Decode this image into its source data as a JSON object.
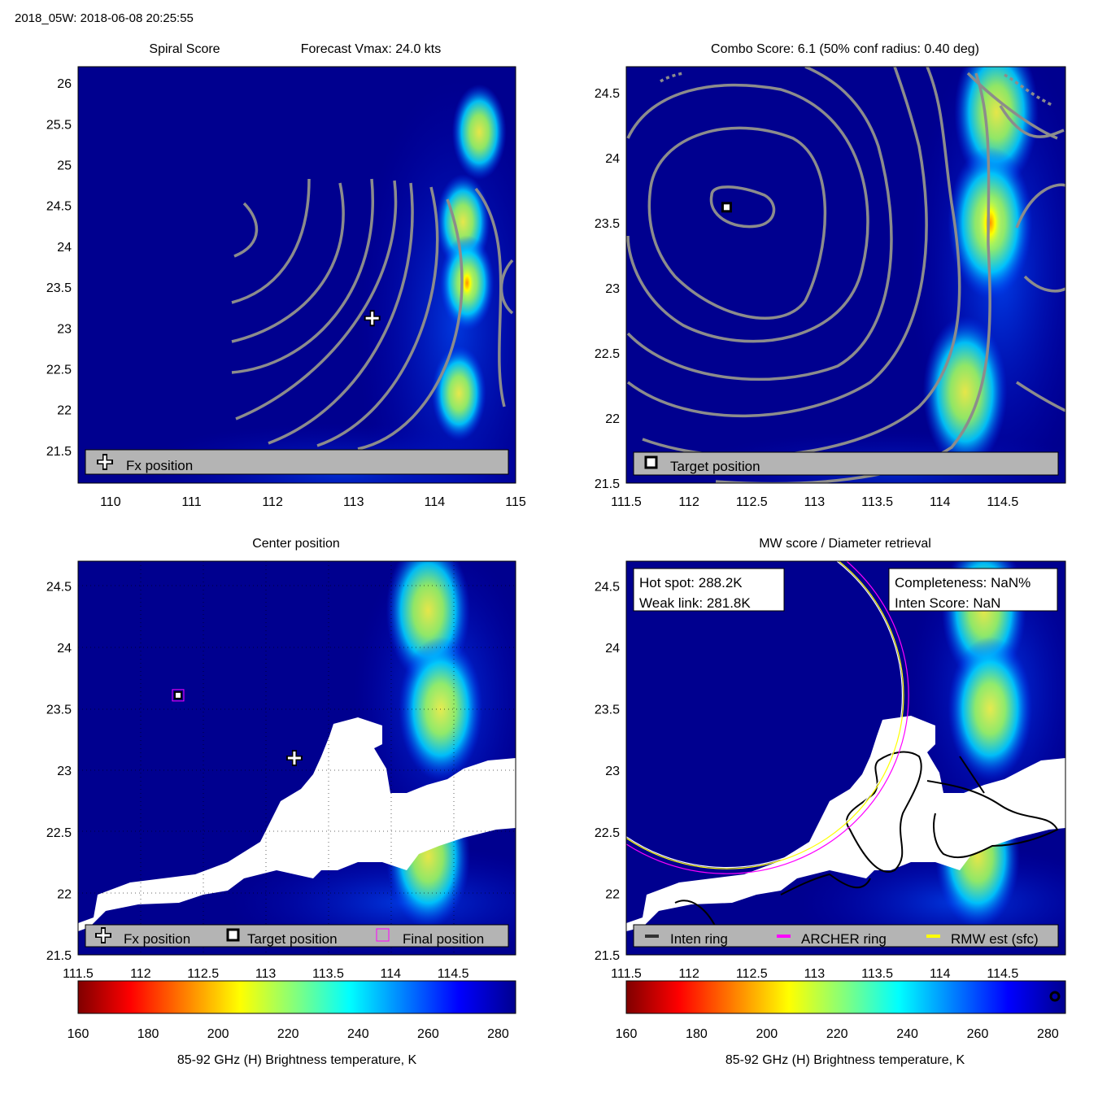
{
  "header": {
    "title": "2018_05W: 2018-06-08 20:25:55"
  },
  "colors": {
    "background": "#00008f",
    "contour": "#8c8c8c",
    "legend_box": "#b4b4b4",
    "cloud_mask": "#ffffff",
    "inten_ring": "#000000",
    "archer_ring": "#ff00ff",
    "rmw_ring": "#ffff00"
  },
  "panels": [
    {
      "id": "spiral",
      "title_left": "Spiral Score",
      "title_right": "Forecast Vmax: 24.0 kts",
      "legend": [
        {
          "icon": "plus-icon",
          "label": "Fx position"
        }
      ]
    },
    {
      "id": "combo",
      "title": "Combo Score: 6.1  (50% conf radius: 0.40 deg)",
      "legend": [
        {
          "icon": "square-marker-icon",
          "label": "Target position"
        }
      ]
    },
    {
      "id": "center",
      "title": "Center position",
      "legend": [
        {
          "icon": "plus-icon",
          "label": "Fx position"
        },
        {
          "icon": "square-marker-icon",
          "label": "Target position"
        },
        {
          "icon": "magenta-square-icon",
          "label": "Final position"
        }
      ]
    },
    {
      "id": "mw",
      "title": "MW score / Diameter retrieval",
      "info_left": [
        "Hot spot: 288.2K",
        "Weak link: 281.8K"
      ],
      "info_right": [
        "Completeness: NaN%",
        "Inten Score: NaN"
      ],
      "legend": [
        {
          "icon": "dark-line-icon",
          "label": "Inten ring"
        },
        {
          "icon": "magenta-line-icon",
          "label": "ARCHER ring"
        },
        {
          "icon": "yellow-line-icon",
          "label": "RMW est (sfc)"
        }
      ]
    }
  ],
  "chart_data": [
    {
      "type": "heatmap",
      "title": "Spiral Score",
      "xlim": [
        109.6,
        115
      ],
      "ylim": [
        21.1,
        26.2
      ],
      "xticks": [
        "110",
        "111",
        "112",
        "113",
        "114",
        "115"
      ],
      "yticks": [
        "21.5",
        "22",
        "22.5",
        "23",
        "23.5",
        "24",
        "24.5",
        "25",
        "25.5",
        "26"
      ],
      "fx_position": [
        113.23,
        23.12
      ],
      "hot_spots": [
        {
          "lon": 114.55,
          "lat": 25.4,
          "tb": 215
        },
        {
          "lon": 114.35,
          "lat": 24.3,
          "tb": 210
        },
        {
          "lon": 114.4,
          "lat": 23.55,
          "tb": 195
        },
        {
          "lon": 114.3,
          "lat": 22.2,
          "tb": 228
        }
      ]
    },
    {
      "type": "heatmap",
      "title": "Combo Score: 6.1  (50% conf radius: 0.40 deg)",
      "xlim": [
        111.5,
        115
      ],
      "ylim": [
        21.5,
        24.7
      ],
      "xticks": [
        "111.5",
        "112",
        "112.5",
        "113",
        "113.5",
        "114",
        "114.5"
      ],
      "yticks": [
        "21.5",
        "22",
        "22.5",
        "23",
        "23.5",
        "24",
        "24.5"
      ],
      "target_position": [
        112.3,
        23.62
      ],
      "hot_spots": [
        {
          "lon": 114.45,
          "lat": 24.35,
          "tb": 212
        },
        {
          "lon": 114.4,
          "lat": 23.5,
          "tb": 195
        },
        {
          "lon": 114.2,
          "lat": 22.2,
          "tb": 225
        }
      ]
    },
    {
      "type": "heatmap",
      "title": "Center position",
      "xlim": [
        111.5,
        115
      ],
      "ylim": [
        21.5,
        24.7
      ],
      "xticks": [
        "111.5",
        "112",
        "112.5",
        "113",
        "113.5",
        "114",
        "114.5"
      ],
      "yticks": [
        "21.5",
        "22",
        "22.5",
        "23",
        "23.5",
        "24",
        "24.5"
      ],
      "fx_position": [
        113.23,
        23.1
      ],
      "target_position": [
        112.3,
        23.61
      ],
      "final_position": [
        112.3,
        23.61
      ],
      "hot_spots": [
        {
          "lon": 114.3,
          "lat": 24.3,
          "tb": 212
        },
        {
          "lon": 114.4,
          "lat": 23.5,
          "tb": 205
        },
        {
          "lon": 114.3,
          "lat": 22.3,
          "tb": 228
        }
      ]
    },
    {
      "type": "heatmap",
      "title": "MW score / Diameter retrieval",
      "xlim": [
        111.5,
        115
      ],
      "ylim": [
        21.5,
        24.7
      ],
      "xticks": [
        "111.5",
        "112",
        "112.5",
        "113",
        "113.5",
        "114",
        "114.5"
      ],
      "yticks": [
        "21.5",
        "22",
        "22.5",
        "23",
        "23.5",
        "24",
        "24.5"
      ],
      "ring_center": [
        112.3,
        23.61
      ],
      "inten_ring_radius_deg": 1.4,
      "archer_ring_radius_deg": 1.45,
      "rmw_ring_radius_deg": 1.41,
      "hot_spots": [
        {
          "lon": 114.35,
          "lat": 24.3,
          "tb": 212
        },
        {
          "lon": 114.4,
          "lat": 23.5,
          "tb": 205
        },
        {
          "lon": 114.3,
          "lat": 22.3,
          "tb": 228
        }
      ]
    },
    {
      "type": "colorbar",
      "xlabel": "85-92 GHz (H) Brightness temperature, K",
      "range": [
        160,
        285
      ],
      "ticks": [
        "160",
        "180",
        "200",
        "220",
        "240",
        "260",
        "280"
      ]
    }
  ]
}
